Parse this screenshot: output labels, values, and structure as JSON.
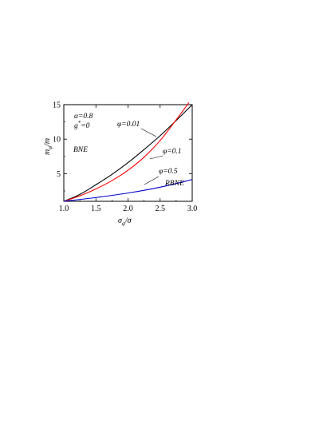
{
  "chart_data": {
    "type": "line",
    "xlabel": "σ_φ/σ",
    "ylabel": "m_φ/m",
    "xlim": [
      1.0,
      3.0
    ],
    "ylim": [
      1.0,
      15.0
    ],
    "x_ticks": [
      "1.0",
      "1.5",
      "2.0",
      "2.5",
      "3.0"
    ],
    "y_ticks": [
      "5",
      "10",
      "15"
    ],
    "grid": false,
    "series": [
      {
        "name": "φ=0.01",
        "color": "#000000",
        "x": [
          1.0,
          1.25,
          1.5,
          1.75,
          2.0,
          2.25,
          2.5,
          2.75,
          3.0
        ],
        "y": [
          1.0,
          2.0,
          3.4,
          4.9,
          6.6,
          8.5,
          10.5,
          12.7,
          15.0
        ]
      },
      {
        "name": "φ=0.1",
        "color": "#ff0000",
        "x": [
          1.0,
          1.25,
          1.5,
          1.75,
          2.0,
          2.25,
          2.5,
          2.75,
          2.95
        ],
        "y": [
          1.0,
          1.8,
          2.8,
          4.0,
          5.5,
          7.4,
          9.8,
          12.8,
          15.3
        ]
      },
      {
        "name": "φ=0.5",
        "color": "#0000cc",
        "x": [
          1.0,
          1.5,
          2.0,
          2.5,
          3.0
        ],
        "y": [
          1.0,
          1.55,
          2.2,
          3.05,
          4.15
        ]
      }
    ],
    "annotations": [
      "α=0.8",
      "g*=0",
      "BNE",
      "RBNE",
      "φ=0.01",
      "φ=0.1",
      "φ=0.5"
    ]
  },
  "labels": {
    "alpha": "α=0.8",
    "g_star": "g",
    "g_star_sup": "*",
    "g_star_rest": "=0",
    "bne": "BNE",
    "rbne": "RBNE",
    "phi_001": "φ=0.01",
    "phi_01": "φ=0.1",
    "phi_05": "φ=0.5",
    "x_title_main": "σ",
    "x_title_sub": "φ",
    "x_title_rest": "/σ",
    "y_title_main": "m",
    "y_title_sub": "φ",
    "y_title_rest": "/m"
  }
}
